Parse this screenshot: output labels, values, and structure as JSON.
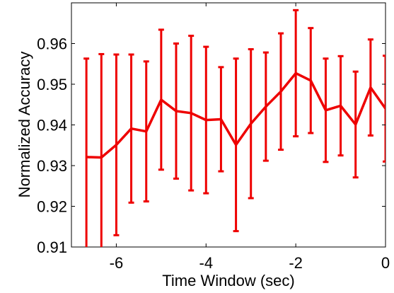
{
  "chart_data": {
    "type": "errorbar-line",
    "xlabel": "Time Window (sec)",
    "ylabel": "Normalized Accuracy",
    "x": [
      -6.667,
      -6.333,
      -6,
      -5.667,
      -5.333,
      -5,
      -4.667,
      -4.333,
      -4,
      -3.667,
      -3.333,
      -3,
      -2.667,
      -2.333,
      -2,
      -1.667,
      -1.333,
      -1,
      -0.667,
      -0.333,
      0
    ],
    "series": [
      {
        "color": "#ee0000",
        "values": [
          0.9321,
          0.932,
          0.9351,
          0.9391,
          0.9384,
          0.9462,
          0.9434,
          0.9429,
          0.9412,
          0.9414,
          0.9351,
          0.9403,
          0.9445,
          0.9482,
          0.9527,
          0.9509,
          0.9436,
          0.9447,
          0.9401,
          0.9492,
          0.944
        ],
        "errors": [
          0.0242,
          0.0254,
          0.0222,
          0.0182,
          0.0172,
          0.0172,
          0.0166,
          0.019,
          0.018,
          0.0128,
          0.0212,
          0.0183,
          0.0133,
          0.0143,
          0.0155,
          0.0129,
          0.0127,
          0.0122,
          0.013,
          0.0118,
          0.013
        ]
      }
    ],
    "xlim": [
      -7,
      0
    ],
    "xticks": [
      -6,
      -4,
      -2,
      0
    ],
    "ylim": [
      0.91,
      0.97
    ],
    "yticks": [
      0.91,
      0.92,
      0.93,
      0.94,
      0.95,
      0.96
    ]
  }
}
